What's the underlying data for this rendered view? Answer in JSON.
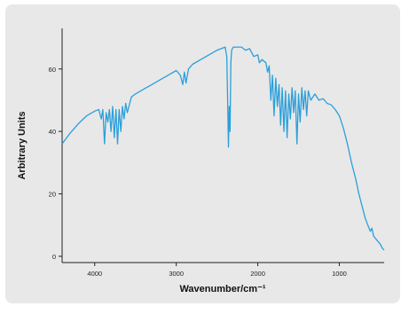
{
  "chart_data": {
    "type": "line",
    "title": "",
    "xlabel": "Wavenumber/cm⁻¹",
    "ylabel": "Arbitrary Units",
    "xlim": [
      4400,
      450
    ],
    "ylim": [
      -2,
      73
    ],
    "x_reversed": true,
    "grid": false,
    "legend": "none",
    "x_ticks": [
      {
        "value": 4000,
        "label": "4000"
      },
      {
        "value": 3000,
        "label": "3000"
      },
      {
        "value": 2000,
        "label": "2000"
      },
      {
        "value": 1000,
        "label": "1000"
      }
    ],
    "y_ticks": [
      {
        "value": 0,
        "label": "0"
      },
      {
        "value": 20,
        "label": "20"
      },
      {
        "value": 40,
        "label": "40"
      },
      {
        "value": 60,
        "label": "60"
      }
    ],
    "series": [
      {
        "color": "#2b9fda",
        "points": [
          [
            4400,
            36
          ],
          [
            4300,
            39.5
          ],
          [
            4200,
            42.5
          ],
          [
            4100,
            45
          ],
          [
            4000,
            46.5
          ],
          [
            3950,
            47
          ],
          [
            3920,
            44
          ],
          [
            3900,
            47
          ],
          [
            3880,
            36
          ],
          [
            3860,
            46
          ],
          [
            3840,
            43
          ],
          [
            3820,
            47
          ],
          [
            3800,
            40
          ],
          [
            3780,
            48
          ],
          [
            3760,
            38
          ],
          [
            3740,
            47
          ],
          [
            3720,
            36
          ],
          [
            3700,
            47
          ],
          [
            3680,
            40
          ],
          [
            3660,
            48
          ],
          [
            3640,
            44
          ],
          [
            3620,
            49
          ],
          [
            3600,
            46
          ],
          [
            3550,
            51
          ],
          [
            3500,
            52
          ],
          [
            3400,
            53.5
          ],
          [
            3300,
            55
          ],
          [
            3200,
            56.5
          ],
          [
            3100,
            58
          ],
          [
            3000,
            59.5
          ],
          [
            2950,
            58
          ],
          [
            2920,
            55
          ],
          [
            2900,
            59
          ],
          [
            2880,
            55.5
          ],
          [
            2850,
            60
          ],
          [
            2800,
            61.5
          ],
          [
            2700,
            63
          ],
          [
            2600,
            64.5
          ],
          [
            2500,
            66
          ],
          [
            2450,
            66.5
          ],
          [
            2400,
            67
          ],
          [
            2380,
            64
          ],
          [
            2370,
            50
          ],
          [
            2360,
            35
          ],
          [
            2350,
            48
          ],
          [
            2340,
            40
          ],
          [
            2330,
            62
          ],
          [
            2320,
            66
          ],
          [
            2300,
            67
          ],
          [
            2200,
            67
          ],
          [
            2150,
            66
          ],
          [
            2100,
            66.5
          ],
          [
            2050,
            64
          ],
          [
            2000,
            64.5
          ],
          [
            1980,
            62
          ],
          [
            1950,
            63
          ],
          [
            1900,
            62
          ],
          [
            1880,
            59
          ],
          [
            1860,
            61
          ],
          [
            1840,
            50
          ],
          [
            1820,
            58
          ],
          [
            1800,
            45
          ],
          [
            1780,
            57
          ],
          [
            1760,
            48
          ],
          [
            1740,
            55
          ],
          [
            1720,
            42
          ],
          [
            1700,
            54
          ],
          [
            1680,
            40
          ],
          [
            1660,
            53
          ],
          [
            1640,
            38
          ],
          [
            1620,
            52
          ],
          [
            1600,
            44
          ],
          [
            1580,
            54
          ],
          [
            1560,
            46
          ],
          [
            1540,
            53
          ],
          [
            1520,
            36
          ],
          [
            1500,
            52
          ],
          [
            1480,
            43
          ],
          [
            1460,
            54
          ],
          [
            1440,
            47
          ],
          [
            1420,
            53
          ],
          [
            1400,
            45
          ],
          [
            1380,
            53
          ],
          [
            1350,
            50
          ],
          [
            1300,
            52
          ],
          [
            1250,
            50
          ],
          [
            1200,
            50.5
          ],
          [
            1150,
            49
          ],
          [
            1100,
            48.5
          ],
          [
            1050,
            47
          ],
          [
            1000,
            45
          ],
          [
            950,
            41
          ],
          [
            900,
            36
          ],
          [
            850,
            30
          ],
          [
            800,
            25
          ],
          [
            760,
            20
          ],
          [
            720,
            16
          ],
          [
            700,
            14
          ],
          [
            680,
            12
          ],
          [
            650,
            10
          ],
          [
            620,
            8
          ],
          [
            600,
            9
          ],
          [
            580,
            6.5
          ],
          [
            550,
            5.5
          ],
          [
            500,
            4
          ],
          [
            470,
            2.5
          ],
          [
            450,
            2
          ]
        ]
      }
    ]
  }
}
